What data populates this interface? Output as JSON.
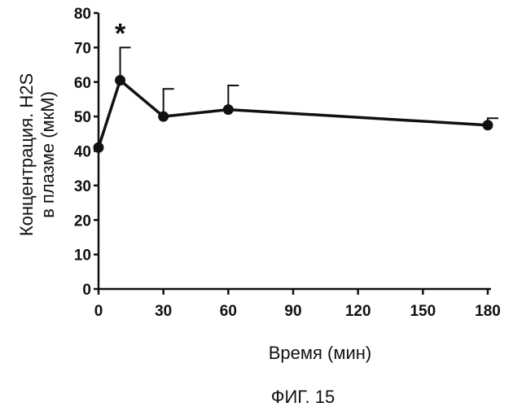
{
  "chart_data": {
    "type": "line",
    "xlabel": "Время (мин)",
    "ylabel_line1": "Концентрация. H2S",
    "ylabel_line2": "в плазме (мкМ)",
    "caption": "ФИГ. 15",
    "x_ticks": [
      0,
      30,
      60,
      90,
      120,
      150,
      180
    ],
    "y_ticks": [
      0,
      10,
      20,
      30,
      40,
      50,
      60,
      70,
      80
    ],
    "xlim": [
      0,
      180
    ],
    "ylim": [
      0,
      80
    ],
    "grid": false,
    "series": [
      {
        "x": [
          0,
          10,
          30,
          60,
          180
        ],
        "y": [
          41,
          60.5,
          50,
          52,
          47.5
        ],
        "error_upper": [
          0,
          9.5,
          8,
          7,
          2
        ]
      }
    ],
    "annotations": [
      {
        "text": "*",
        "x": 10,
        "y": 70
      }
    ]
  }
}
